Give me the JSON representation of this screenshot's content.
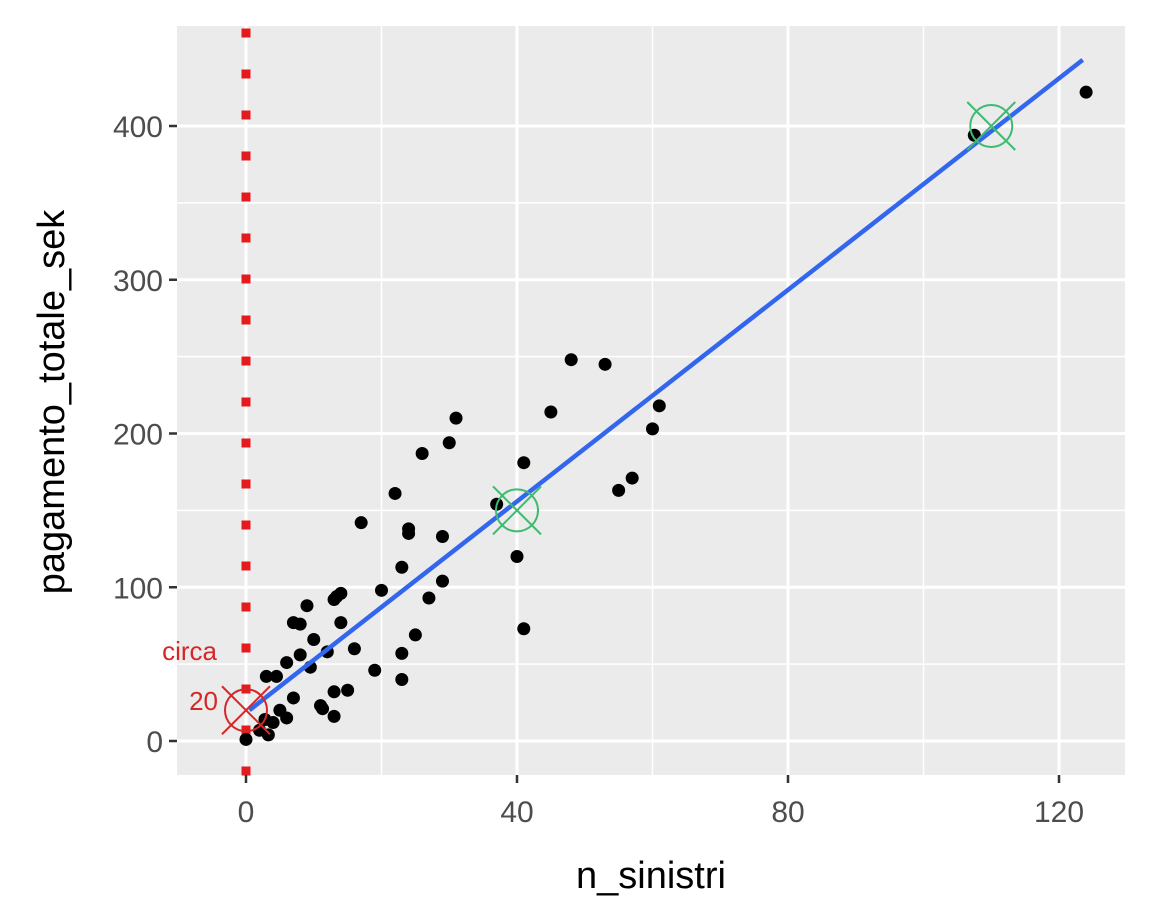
{
  "chart_data": {
    "type": "scatter",
    "title": "",
    "xlabel": "n_sinistri",
    "ylabel": "pagamento_totale_sek",
    "xlim": [
      -10,
      130
    ],
    "ylim": [
      -22,
      455
    ],
    "x_ticks": [
      0,
      40,
      80,
      120
    ],
    "y_ticks": [
      0,
      100,
      200,
      300,
      400
    ],
    "x_minor": [
      20,
      60,
      100
    ],
    "y_minor": [
      50,
      150,
      250,
      350
    ],
    "grid": true,
    "legend": null,
    "background": "#ebebeb",
    "points": [
      [
        0,
        1
      ],
      [
        2,
        7
      ],
      [
        2.8,
        14
      ],
      [
        3.3,
        4
      ],
      [
        4,
        12
      ],
      [
        5,
        20
      ],
      [
        6,
        15
      ],
      [
        7,
        28
      ],
      [
        3,
        42
      ],
      [
        4.5,
        42
      ],
      [
        6,
        51
      ],
      [
        8,
        56
      ],
      [
        9.5,
        48
      ],
      [
        7,
        77
      ],
      [
        8,
        76
      ],
      [
        9,
        88
      ],
      [
        10,
        66
      ],
      [
        11,
        23
      ],
      [
        11.3,
        21
      ],
      [
        13,
        16
      ],
      [
        13,
        32
      ],
      [
        15,
        33
      ],
      [
        12,
        58
      ],
      [
        13,
        92
      ],
      [
        13.4,
        94
      ],
      [
        14,
        96
      ],
      [
        14,
        77
      ],
      [
        16,
        60
      ],
      [
        19,
        46
      ],
      [
        20,
        98
      ],
      [
        23,
        113
      ],
      [
        23,
        57
      ],
      [
        23,
        40
      ],
      [
        25,
        69
      ],
      [
        27,
        93
      ],
      [
        17,
        142
      ],
      [
        22,
        161
      ],
      [
        24,
        138
      ],
      [
        24,
        135
      ],
      [
        26,
        187
      ],
      [
        30,
        194
      ],
      [
        31,
        210
      ],
      [
        29,
        133
      ],
      [
        29,
        104
      ],
      [
        37,
        154
      ],
      [
        41,
        181
      ],
      [
        40,
        120
      ],
      [
        41,
        73
      ],
      [
        45,
        214
      ],
      [
        48,
        248
      ],
      [
        53,
        245
      ],
      [
        55,
        163
      ],
      [
        57,
        171
      ],
      [
        60,
        203
      ],
      [
        61,
        218
      ],
      [
        107.5,
        394
      ],
      [
        124,
        422
      ]
    ],
    "point_color": "#000000",
    "regression_line": {
      "x0": 0.5,
      "y0": 20,
      "x1": 123.5,
      "y1": 443,
      "color": "#3366ee"
    },
    "vline": {
      "x": 0,
      "style": "dotted",
      "color": "#e41a1c"
    },
    "markers": [
      {
        "x": 0,
        "y": 20,
        "color": "#d62728",
        "shape": "circle-x"
      },
      {
        "x": 40,
        "y": 150,
        "color": "#3dbb6e",
        "shape": "circle-x"
      },
      {
        "x": 110,
        "y": 400,
        "color": "#3dbb6e",
        "shape": "circle-x"
      }
    ],
    "annotations": [
      {
        "text": "circa",
        "x": -5,
        "y": 58,
        "color": "#d62728"
      },
      {
        "text": "20",
        "x": -3,
        "y": 26,
        "color": "#d62728"
      }
    ]
  }
}
